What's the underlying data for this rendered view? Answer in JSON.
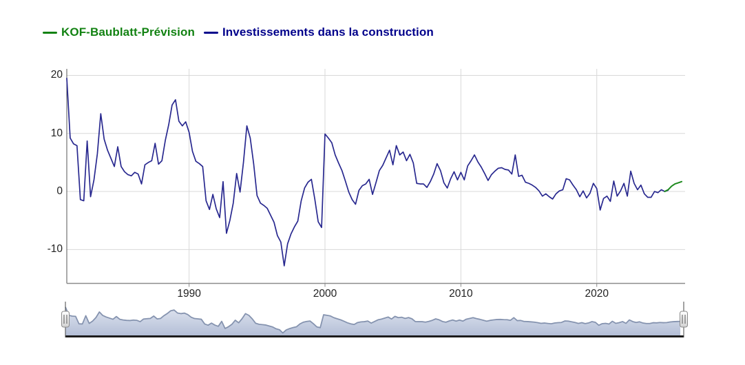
{
  "legend": {
    "items": [
      {
        "label": "KOF-Baublatt-Prévision",
        "color": "#128212"
      },
      {
        "label": "Investissements dans la construction",
        "color": "#00008b"
      }
    ]
  },
  "axes": {
    "y": {
      "ticks": [
        {
          "label": "20",
          "value": 20
        },
        {
          "label": "10",
          "value": 10
        },
        {
          "label": "0",
          "value": 0
        },
        {
          "label": "-10",
          "value": -10
        }
      ]
    },
    "x": {
      "ticks": [
        {
          "label": "1990",
          "value": 1990
        },
        {
          "label": "2000",
          "value": 2000
        },
        {
          "label": "2010",
          "value": 2010
        },
        {
          "label": "2020",
          "value": 2020
        }
      ]
    }
  },
  "chart_data": {
    "type": "line",
    "title": "",
    "xlabel": "",
    "ylabel": "",
    "x_unit": "year, quarterly data",
    "xlim": [
      1981,
      2026.5
    ],
    "ylim": [
      -15.83,
      21.12
    ],
    "grid": true,
    "legend_position": "top-left",
    "series": [
      {
        "name": "KOF-Baublatt-Prévision",
        "color": "#1d8a1d",
        "width": 2,
        "x_start": 2025.0,
        "x_step": 0.25,
        "values": [
          0.0,
          0.3,
          0.9,
          1.3,
          1.5,
          1.7
        ]
      },
      {
        "name": "Investissements dans la construction",
        "color": "#28288f",
        "width": 1.7,
        "x_start": 1981.0,
        "x_step": 0.25,
        "values": [
          19.5,
          9.2,
          8.2,
          7.9,
          -1.4,
          -1.6,
          8.7,
          -0.9,
          2.0,
          6.5,
          13.4,
          9.0,
          7.1,
          5.7,
          4.3,
          7.7,
          4.3,
          3.4,
          2.9,
          2.7,
          3.3,
          3.0,
          1.3,
          4.6,
          5.0,
          5.3,
          8.3,
          4.7,
          5.3,
          8.8,
          11.5,
          14.9,
          15.8,
          12.1,
          11.3,
          12.0,
          10.2,
          6.9,
          5.2,
          4.8,
          4.3,
          -1.6,
          -3.1,
          -0.5,
          -3.0,
          -4.5,
          1.7,
          -7.2,
          -5.0,
          -2.0,
          3.1,
          -0.1,
          5.0,
          11.3,
          9.2,
          4.8,
          -0.7,
          -2.0,
          -2.4,
          -2.9,
          -4.1,
          -5.3,
          -7.6,
          -8.7,
          -12.8,
          -9.0,
          -7.3,
          -6.1,
          -5.1,
          -1.6,
          0.6,
          1.6,
          2.1,
          -1.3,
          -5.2,
          -6.2,
          9.9,
          9.2,
          8.4,
          6.3,
          4.9,
          3.6,
          1.8,
          -0.1,
          -1.4,
          -2.2,
          0.2,
          1.0,
          1.3,
          2.1,
          -0.5,
          1.5,
          3.6,
          4.5,
          5.8,
          7.1,
          4.6,
          7.9,
          6.3,
          6.8,
          5.3,
          6.4,
          4.9,
          1.4,
          1.3,
          1.3,
          0.7,
          1.7,
          3.0,
          4.8,
          3.6,
          1.5,
          0.6,
          2.2,
          3.4,
          2.0,
          3.3,
          2.0,
          4.4,
          5.3,
          6.3,
          5.1,
          4.2,
          3.1,
          1.9,
          2.9,
          3.5,
          4.0,
          4.1,
          3.8,
          3.7,
          3.0,
          6.3,
          2.6,
          2.8,
          1.6,
          1.4,
          1.1,
          0.7,
          0.1,
          -0.8,
          -0.4,
          -0.9,
          -1.3,
          -0.4,
          0.1,
          0.3,
          2.2,
          2.0,
          1.1,
          0.3,
          -0.9,
          0.1,
          -1.1,
          -0.3,
          1.4,
          0.5,
          -3.2,
          -1.2,
          -0.8,
          -1.7,
          1.8,
          -0.8,
          0.1,
          1.4,
          -0.8,
          3.5,
          1.4,
          0.3,
          1.1,
          -0.4,
          -1.0,
          -1.0,
          0.0,
          -0.2,
          0.3,
          0.0,
          0.2
        ]
      }
    ],
    "navigator": {
      "present": true,
      "x_range": [
        1981,
        2026.5
      ],
      "handles": [
        "left",
        "right"
      ]
    }
  },
  "colors": {
    "grid": "#d8d8d8",
    "y_axis_line": "#555555",
    "x_axis_line": "#8a8a8a",
    "tick_mark": "#8a8a8a",
    "tick_text": "#222222",
    "navigator_line": "#8593af",
    "navigator_fill_top": "#dfe4ef",
    "navigator_fill_bottom": "#b4bfd7",
    "navigator_bar": "#1c1c1c",
    "navigator_edge": "#444444",
    "handle_border": "#8a8a8a",
    "handle_stripe": "#555555"
  }
}
